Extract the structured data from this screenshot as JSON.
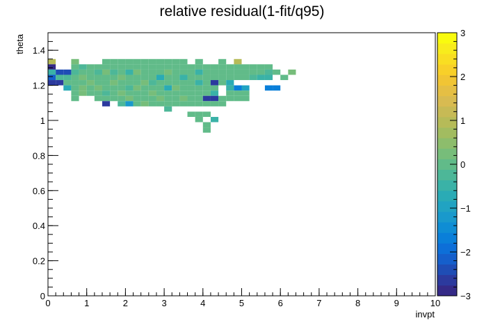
{
  "chart_data": {
    "type": "heatmap",
    "title": "relative residual(1-fit/q95)",
    "xlabel": "invpt",
    "ylabel": "theta",
    "xlim": [
      0,
      10
    ],
    "ylim": [
      0,
      1.5
    ],
    "zlim": [
      -3,
      3
    ],
    "x_major_ticks": [
      0,
      1,
      2,
      3,
      4,
      5,
      6,
      7,
      8,
      9,
      10
    ],
    "y_major_ticks": [
      0,
      0.2,
      0.4,
      0.6,
      0.8,
      1,
      1.2,
      1.4
    ],
    "z_major_ticks": [
      -3,
      -2,
      -1,
      0,
      1,
      2,
      3
    ],
    "x_tick_labels": [
      "0",
      "1",
      "2",
      "3",
      "4",
      "5",
      "6",
      "7",
      "8",
      "9",
      "10"
    ],
    "y_tick_labels": [
      "0",
      "0.2",
      "0.4",
      "0.6",
      "0.8",
      "1",
      "1.2",
      "1.4"
    ],
    "z_tick_labels": [
      "−3",
      "−2",
      "−1",
      "0",
      "1",
      "2",
      "3"
    ],
    "bin_width_x": 0.2,
    "bin_width_y": 0.03,
    "palette": [
      "#352a87",
      "#2c3a9e",
      "#1f4db5",
      "#155fcb",
      "#0d6fd8",
      "#0a7fd9",
      "#0f8dd4",
      "#1999cc",
      "#21a3c2",
      "#2aabb5",
      "#3ab2a7",
      "#4db798",
      "#61bb89",
      "#77bd7a",
      "#8dbd6c",
      "#a2bc60",
      "#b6bb58",
      "#c7ba55",
      "#d8bb51",
      "#e5bf44",
      "#f1c534",
      "#f8d029",
      "#f9de22",
      "#f8ec1c",
      "#f9fb0e"
    ],
    "cells": [
      {
        "x": 0.1,
        "y": 1.335,
        "z": 0.9
      },
      {
        "x": 0.1,
        "y": 1.305,
        "z": -2.8
      },
      {
        "x": 0.1,
        "y": 1.275,
        "z": -0.4
      },
      {
        "x": 0.1,
        "y": 1.245,
        "z": -2.2
      },
      {
        "x": 0.1,
        "y": 1.215,
        "z": -2.6
      },
      {
        "x": 0.3,
        "y": 1.275,
        "z": -2.4
      },
      {
        "x": 0.3,
        "y": 1.245,
        "z": -0.2
      },
      {
        "x": 0.3,
        "y": 1.215,
        "z": -2.6
      },
      {
        "x": 0.5,
        "y": 1.275,
        "z": -2.4
      },
      {
        "x": 0.5,
        "y": 1.245,
        "z": -0.3
      },
      {
        "x": 0.5,
        "y": 1.215,
        "z": 0.1
      },
      {
        "x": 0.5,
        "y": 1.185,
        "z": -0.8
      },
      {
        "x": 0.7,
        "y": 1.335,
        "z": 0.2
      },
      {
        "x": 0.7,
        "y": 1.305,
        "z": 0.0
      },
      {
        "x": 0.7,
        "y": 1.275,
        "z": -0.2
      },
      {
        "x": 0.7,
        "y": 1.245,
        "z": 0.1
      },
      {
        "x": 0.7,
        "y": 1.215,
        "z": -0.1
      },
      {
        "x": 0.7,
        "y": 1.185,
        "z": 0.0
      },
      {
        "x": 0.7,
        "y": 1.155,
        "z": 0.1
      },
      {
        "x": 0.7,
        "y": 1.125,
        "z": -0.1
      },
      {
        "x": 0.9,
        "y": 1.305,
        "z": -0.2
      },
      {
        "x": 0.9,
        "y": 1.275,
        "z": 0.0
      },
      {
        "x": 0.9,
        "y": 1.245,
        "z": 0.2
      },
      {
        "x": 0.9,
        "y": 1.215,
        "z": 0.0
      },
      {
        "x": 0.9,
        "y": 1.185,
        "z": 0.3
      },
      {
        "x": 0.9,
        "y": 1.155,
        "z": 0.2
      },
      {
        "x": 1.1,
        "y": 1.305,
        "z": 0.1
      },
      {
        "x": 1.1,
        "y": 1.275,
        "z": -0.1
      },
      {
        "x": 1.1,
        "y": 1.245,
        "z": 0.0
      },
      {
        "x": 1.1,
        "y": 1.215,
        "z": 0.2
      },
      {
        "x": 1.1,
        "y": 1.185,
        "z": 0.0
      },
      {
        "x": 1.1,
        "y": 1.155,
        "z": 0.1
      },
      {
        "x": 1.3,
        "y": 1.305,
        "z": 0.0
      },
      {
        "x": 1.3,
        "y": 1.275,
        "z": -0.3
      },
      {
        "x": 1.3,
        "y": 1.245,
        "z": 0.1
      },
      {
        "x": 1.3,
        "y": 1.215,
        "z": -0.1
      },
      {
        "x": 1.3,
        "y": 1.185,
        "z": 0.2
      },
      {
        "x": 1.3,
        "y": 1.155,
        "z": 0.0
      },
      {
        "x": 1.3,
        "y": 1.125,
        "z": 0.1
      },
      {
        "x": 1.5,
        "y": 1.335,
        "z": 0.1
      },
      {
        "x": 1.5,
        "y": 1.305,
        "z": 0.0
      },
      {
        "x": 1.5,
        "y": 1.275,
        "z": 0.2
      },
      {
        "x": 1.5,
        "y": 1.245,
        "z": -0.1
      },
      {
        "x": 1.5,
        "y": 1.215,
        "z": 0.0
      },
      {
        "x": 1.5,
        "y": 1.185,
        "z": 0.1
      },
      {
        "x": 1.5,
        "y": 1.155,
        "z": -0.2
      },
      {
        "x": 1.5,
        "y": 1.125,
        "z": 0.0
      },
      {
        "x": 1.5,
        "y": 1.095,
        "z": -2.6
      },
      {
        "x": 1.7,
        "y": 1.335,
        "z": 0.0
      },
      {
        "x": 1.7,
        "y": 1.305,
        "z": 0.1
      },
      {
        "x": 1.7,
        "y": 1.275,
        "z": -0.2
      },
      {
        "x": 1.7,
        "y": 1.245,
        "z": 0.0
      },
      {
        "x": 1.7,
        "y": 1.215,
        "z": 0.2
      },
      {
        "x": 1.7,
        "y": 1.185,
        "z": -0.1
      },
      {
        "x": 1.7,
        "y": 1.155,
        "z": 0.1
      },
      {
        "x": 1.7,
        "y": 1.125,
        "z": 0.0
      },
      {
        "x": 1.9,
        "y": 1.335,
        "z": 0.1
      },
      {
        "x": 1.9,
        "y": 1.305,
        "z": -0.1
      },
      {
        "x": 1.9,
        "y": 1.275,
        "z": 0.0
      },
      {
        "x": 1.9,
        "y": 1.245,
        "z": 0.2
      },
      {
        "x": 1.9,
        "y": 1.215,
        "z": 0.0
      },
      {
        "x": 1.9,
        "y": 1.185,
        "z": 0.1
      },
      {
        "x": 1.9,
        "y": 1.155,
        "z": 0.3
      },
      {
        "x": 1.9,
        "y": 1.125,
        "z": 0.0
      },
      {
        "x": 1.9,
        "y": 1.095,
        "z": -0.3
      },
      {
        "x": 2.1,
        "y": 1.335,
        "z": 0.0
      },
      {
        "x": 2.1,
        "y": 1.305,
        "z": 0.1
      },
      {
        "x": 2.1,
        "y": 1.275,
        "z": -0.6
      },
      {
        "x": 2.1,
        "y": 1.245,
        "z": 0.1
      },
      {
        "x": 2.1,
        "y": 1.215,
        "z": 0.0
      },
      {
        "x": 2.1,
        "y": 1.185,
        "z": -0.2
      },
      {
        "x": 2.1,
        "y": 1.155,
        "z": 0.0
      },
      {
        "x": 2.1,
        "y": 1.125,
        "z": 0.2
      },
      {
        "x": 2.1,
        "y": 1.095,
        "z": -1.1
      },
      {
        "x": 2.3,
        "y": 1.335,
        "z": 0.1
      },
      {
        "x": 2.3,
        "y": 1.305,
        "z": 0.0
      },
      {
        "x": 2.3,
        "y": 1.275,
        "z": 0.2
      },
      {
        "x": 2.3,
        "y": 1.245,
        "z": 0.0
      },
      {
        "x": 2.3,
        "y": 1.215,
        "z": 0.1
      },
      {
        "x": 2.3,
        "y": 1.185,
        "z": 0.3
      },
      {
        "x": 2.3,
        "y": 1.155,
        "z": 0.0
      },
      {
        "x": 2.3,
        "y": 1.125,
        "z": -0.1
      },
      {
        "x": 2.3,
        "y": 1.095,
        "z": 0.0
      },
      {
        "x": 2.5,
        "y": 1.335,
        "z": 0.0
      },
      {
        "x": 2.5,
        "y": 1.305,
        "z": -0.1
      },
      {
        "x": 2.5,
        "y": 1.275,
        "z": 0.1
      },
      {
        "x": 2.5,
        "y": 1.245,
        "z": 0.0
      },
      {
        "x": 2.5,
        "y": 1.215,
        "z": 0.2
      },
      {
        "x": 2.5,
        "y": 1.185,
        "z": 0.0
      },
      {
        "x": 2.5,
        "y": 1.155,
        "z": 0.1
      },
      {
        "x": 2.5,
        "y": 1.125,
        "z": 0.0
      },
      {
        "x": 2.5,
        "y": 1.095,
        "z": 0.2
      },
      {
        "x": 2.7,
        "y": 1.335,
        "z": 0.1
      },
      {
        "x": 2.7,
        "y": 1.305,
        "z": 0.0
      },
      {
        "x": 2.7,
        "y": 1.275,
        "z": 0.0
      },
      {
        "x": 2.7,
        "y": 1.245,
        "z": 0.1
      },
      {
        "x": 2.7,
        "y": 1.215,
        "z": -0.2
      },
      {
        "x": 2.7,
        "y": 1.185,
        "z": 0.0
      },
      {
        "x": 2.7,
        "y": 1.155,
        "z": 0.2
      },
      {
        "x": 2.7,
        "y": 1.125,
        "z": 0.0
      },
      {
        "x": 2.7,
        "y": 1.095,
        "z": 0.1
      },
      {
        "x": 2.9,
        "y": 1.335,
        "z": 0.0
      },
      {
        "x": 2.9,
        "y": 1.305,
        "z": 0.1
      },
      {
        "x": 2.9,
        "y": 1.275,
        "z": 0.0
      },
      {
        "x": 2.9,
        "y": 1.245,
        "z": -0.7
      },
      {
        "x": 2.9,
        "y": 1.215,
        "z": 0.0
      },
      {
        "x": 2.9,
        "y": 1.185,
        "z": 0.1
      },
      {
        "x": 2.9,
        "y": 1.155,
        "z": 0.0
      },
      {
        "x": 2.9,
        "y": 1.125,
        "z": 0.2
      },
      {
        "x": 2.9,
        "y": 1.095,
        "z": 0.0
      },
      {
        "x": 3.1,
        "y": 1.335,
        "z": 0.1
      },
      {
        "x": 3.1,
        "y": 1.305,
        "z": 0.0
      },
      {
        "x": 3.1,
        "y": 1.275,
        "z": 0.2
      },
      {
        "x": 3.1,
        "y": 1.245,
        "z": 0.0
      },
      {
        "x": 3.1,
        "y": 1.215,
        "z": 0.1
      },
      {
        "x": 3.1,
        "y": 1.185,
        "z": -0.7
      },
      {
        "x": 3.1,
        "y": 1.155,
        "z": 0.0
      },
      {
        "x": 3.1,
        "y": 1.125,
        "z": 0.1
      },
      {
        "x": 3.1,
        "y": 1.095,
        "z": 0.0
      },
      {
        "x": 3.1,
        "y": 1.065,
        "z": -0.2
      },
      {
        "x": 3.3,
        "y": 1.335,
        "z": 0.0
      },
      {
        "x": 3.3,
        "y": 1.305,
        "z": 0.1
      },
      {
        "x": 3.3,
        "y": 1.275,
        "z": 0.0
      },
      {
        "x": 3.3,
        "y": 1.245,
        "z": 0.1
      },
      {
        "x": 3.3,
        "y": 1.215,
        "z": 0.0
      },
      {
        "x": 3.3,
        "y": 1.185,
        "z": 0.2
      },
      {
        "x": 3.3,
        "y": 1.155,
        "z": 0.0
      },
      {
        "x": 3.3,
        "y": 1.125,
        "z": 0.1
      },
      {
        "x": 3.3,
        "y": 1.095,
        "z": 0.0
      },
      {
        "x": 3.5,
        "y": 1.335,
        "z": 0.1
      },
      {
        "x": 3.5,
        "y": 1.305,
        "z": 0.0
      },
      {
        "x": 3.5,
        "y": 1.275,
        "z": 0.1
      },
      {
        "x": 3.5,
        "y": 1.245,
        "z": -0.6
      },
      {
        "x": 3.5,
        "y": 1.215,
        "z": 0.0
      },
      {
        "x": 3.5,
        "y": 1.185,
        "z": 0.1
      },
      {
        "x": 3.5,
        "y": 1.155,
        "z": 0.0
      },
      {
        "x": 3.5,
        "y": 1.125,
        "z": 0.2
      },
      {
        "x": 3.5,
        "y": 1.095,
        "z": 0.0
      },
      {
        "x": 3.7,
        "y": 1.305,
        "z": 0.1
      },
      {
        "x": 3.7,
        "y": 1.275,
        "z": 0.0
      },
      {
        "x": 3.7,
        "y": 1.245,
        "z": 0.1
      },
      {
        "x": 3.7,
        "y": 1.215,
        "z": 0.0
      },
      {
        "x": 3.7,
        "y": 1.185,
        "z": 0.1
      },
      {
        "x": 3.7,
        "y": 1.155,
        "z": 0.0
      },
      {
        "x": 3.7,
        "y": 1.125,
        "z": 0.1
      },
      {
        "x": 3.7,
        "y": 1.095,
        "z": 0.0
      },
      {
        "x": 3.7,
        "y": 1.035,
        "z": 0.0
      },
      {
        "x": 3.9,
        "y": 1.335,
        "z": 0.1
      },
      {
        "x": 3.9,
        "y": 1.305,
        "z": 0.0
      },
      {
        "x": 3.9,
        "y": 1.275,
        "z": -0.6
      },
      {
        "x": 3.9,
        "y": 1.245,
        "z": 0.0
      },
      {
        "x": 3.9,
        "y": 1.215,
        "z": -0.5
      },
      {
        "x": 3.9,
        "y": 1.185,
        "z": 0.0
      },
      {
        "x": 3.9,
        "y": 1.155,
        "z": 0.1
      },
      {
        "x": 3.9,
        "y": 1.125,
        "z": 0.0
      },
      {
        "x": 3.9,
        "y": 1.095,
        "z": 0.1
      },
      {
        "x": 3.9,
        "y": 1.035,
        "z": 0.0
      },
      {
        "x": 3.9,
        "y": 1.005,
        "z": 0.1
      },
      {
        "x": 4.1,
        "y": 1.305,
        "z": 0.0
      },
      {
        "x": 4.1,
        "y": 1.275,
        "z": 0.1
      },
      {
        "x": 4.1,
        "y": 1.245,
        "z": 0.0
      },
      {
        "x": 4.1,
        "y": 1.215,
        "z": 0.1
      },
      {
        "x": 4.1,
        "y": 1.185,
        "z": 0.0
      },
      {
        "x": 4.1,
        "y": 1.155,
        "z": 0.1
      },
      {
        "x": 4.1,
        "y": 1.125,
        "z": -2.6
      },
      {
        "x": 4.1,
        "y": 1.095,
        "z": 0.0
      },
      {
        "x": 4.1,
        "y": 1.035,
        "z": 0.0
      },
      {
        "x": 4.1,
        "y": 0.975,
        "z": 0.1
      },
      {
        "x": 4.1,
        "y": 0.945,
        "z": 0.1
      },
      {
        "x": 4.3,
        "y": 1.305,
        "z": 0.1
      },
      {
        "x": 4.3,
        "y": 1.275,
        "z": 0.0
      },
      {
        "x": 4.3,
        "y": 1.245,
        "z": 0.1
      },
      {
        "x": 4.3,
        "y": 1.215,
        "z": -2.6
      },
      {
        "x": 4.3,
        "y": 1.185,
        "z": 0.0
      },
      {
        "x": 4.3,
        "y": 1.155,
        "z": -0.6
      },
      {
        "x": 4.3,
        "y": 1.125,
        "z": -2.6
      },
      {
        "x": 4.3,
        "y": 1.095,
        "z": 0.0
      },
      {
        "x": 4.3,
        "y": 1.005,
        "z": -0.6
      },
      {
        "x": 4.5,
        "y": 1.335,
        "z": 0.1
      },
      {
        "x": 4.5,
        "y": 1.305,
        "z": 0.0
      },
      {
        "x": 4.5,
        "y": 1.275,
        "z": 0.1
      },
      {
        "x": 4.5,
        "y": 1.245,
        "z": 0.0
      },
      {
        "x": 4.5,
        "y": 1.215,
        "z": 0.1
      },
      {
        "x": 4.5,
        "y": 1.125,
        "z": 0.0
      },
      {
        "x": 4.5,
        "y": 1.095,
        "z": 0.1
      },
      {
        "x": 4.7,
        "y": 1.305,
        "z": 0.1
      },
      {
        "x": 4.7,
        "y": 1.275,
        "z": 0.0
      },
      {
        "x": 4.7,
        "y": 1.245,
        "z": 0.1
      },
      {
        "x": 4.7,
        "y": 1.215,
        "z": -0.8
      },
      {
        "x": 4.7,
        "y": 1.185,
        "z": -0.6
      },
      {
        "x": 4.7,
        "y": 1.155,
        "z": 0.0
      },
      {
        "x": 4.7,
        "y": 1.125,
        "z": 0.1
      },
      {
        "x": 4.9,
        "y": 1.335,
        "z": 0.9
      },
      {
        "x": 4.9,
        "y": 1.305,
        "z": 0.0
      },
      {
        "x": 4.9,
        "y": 1.275,
        "z": 0.1
      },
      {
        "x": 4.9,
        "y": 1.245,
        "z": 0.0
      },
      {
        "x": 4.9,
        "y": 1.185,
        "z": -1.8
      },
      {
        "x": 4.9,
        "y": 1.155,
        "z": 0.0
      },
      {
        "x": 4.9,
        "y": 1.125,
        "z": 0.1
      },
      {
        "x": 5.1,
        "y": 1.305,
        "z": 0.1
      },
      {
        "x": 5.1,
        "y": 1.275,
        "z": 0.0
      },
      {
        "x": 5.1,
        "y": 1.245,
        "z": 0.1
      },
      {
        "x": 5.1,
        "y": 1.185,
        "z": -0.9
      },
      {
        "x": 5.1,
        "y": 1.155,
        "z": 0.0
      },
      {
        "x": 5.1,
        "y": 1.125,
        "z": 0.1
      },
      {
        "x": 5.3,
        "y": 1.305,
        "z": 0.0
      },
      {
        "x": 5.3,
        "y": 1.275,
        "z": 0.1
      },
      {
        "x": 5.3,
        "y": 1.245,
        "z": -0.2
      },
      {
        "x": 5.5,
        "y": 1.305,
        "z": 0.1
      },
      {
        "x": 5.5,
        "y": 1.275,
        "z": 0.0
      },
      {
        "x": 5.5,
        "y": 1.245,
        "z": -0.5
      },
      {
        "x": 5.7,
        "y": 1.305,
        "z": 0.0
      },
      {
        "x": 5.7,
        "y": 1.275,
        "z": -0.3
      },
      {
        "x": 5.7,
        "y": 1.245,
        "z": -0.5
      },
      {
        "x": 5.7,
        "y": 1.185,
        "z": -1.8
      },
      {
        "x": 5.9,
        "y": 1.275,
        "z": 0.0
      },
      {
        "x": 5.9,
        "y": 1.185,
        "z": -1.8
      },
      {
        "x": 6.1,
        "y": 1.245,
        "z": 0.1
      },
      {
        "x": 6.3,
        "y": 1.275,
        "z": 0.2
      }
    ]
  }
}
